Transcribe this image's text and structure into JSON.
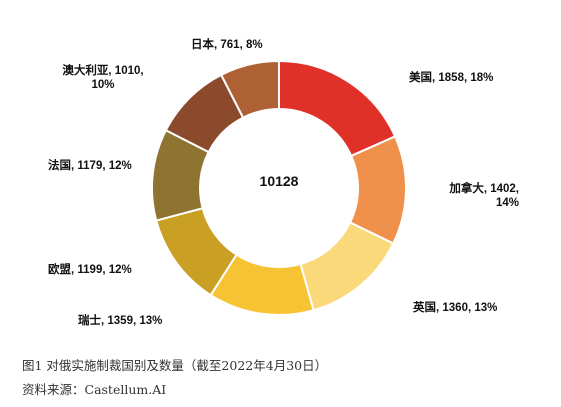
{
  "chart_data": {
    "type": "pie",
    "variant": "donut",
    "center_label": "10128",
    "slices": [
      {
        "label": "美国, 1858, 18%",
        "name": "美国",
        "value": 1858,
        "percent": 18,
        "color": "#E03128"
      },
      {
        "label": "加拿大, 1402, 14%",
        "name": "加拿大",
        "value": 1402,
        "percent": 14,
        "color": "#F0914B"
      },
      {
        "label": "英国, 1360, 13%",
        "name": "英国",
        "value": 1360,
        "percent": 13,
        "color": "#FAD97A"
      },
      {
        "label": "瑞士, 1359, 13%",
        "name": "瑞士",
        "value": 1359,
        "percent": 13,
        "color": "#F6C334"
      },
      {
        "label": "欧盟, 1199, 12%",
        "name": "欧盟",
        "value": 1199,
        "percent": 12,
        "color": "#C99F24"
      },
      {
        "label": "法国, 1179, 12%",
        "name": "法国",
        "value": 1179,
        "percent": 12,
        "color": "#8E7331"
      },
      {
        "label": "澳大利亚, 1010, 10%",
        "name": "澳大利亚",
        "value": 1010,
        "percent": 10,
        "color": "#8C4A2C"
      },
      {
        "label": "日本, 761, 8%",
        "name": "日本",
        "value": 761,
        "percent": 8,
        "color": "#AE6135"
      }
    ]
  },
  "caption": {
    "title": "图1  对俄实施制裁国别及数量（截至2022年4月30日）",
    "source": "资料来源：Castellum.AI"
  }
}
